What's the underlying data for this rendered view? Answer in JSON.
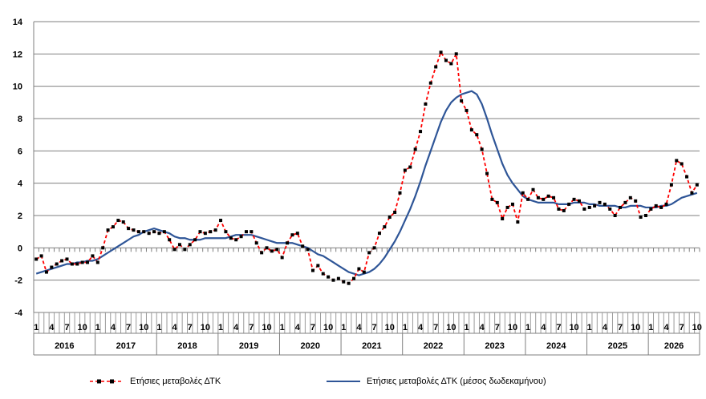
{
  "chart_data": {
    "type": "line",
    "ylim": [
      -4,
      14
    ],
    "yticks": [
      -4,
      -2,
      0,
      2,
      4,
      6,
      8,
      10,
      12,
      14
    ],
    "month_labels": [
      "1",
      "4",
      "7",
      "10"
    ],
    "years": [
      "2016",
      "2017",
      "2018",
      "2019",
      "2020",
      "2021",
      "2022",
      "2023",
      "2024",
      "2025",
      "2026"
    ],
    "grid": true,
    "legend_position": "bottom",
    "series": [
      {
        "name": "Ετήσιες μεταβολές ΔΤΚ",
        "color": "#ff0000",
        "style": "dashed-with-markers",
        "values": [
          -0.7,
          -0.5,
          -1.5,
          -1.2,
          -1.0,
          -0.8,
          -0.7,
          -1.0,
          -1.0,
          -0.9,
          -0.9,
          -0.5,
          -0.9,
          0.0,
          1.1,
          1.3,
          1.7,
          1.6,
          1.2,
          1.1,
          1.0,
          1.0,
          0.9,
          1.0,
          0.9,
          1.0,
          0.5,
          -0.1,
          0.2,
          -0.1,
          0.2,
          0.5,
          1.0,
          0.9,
          1.0,
          1.1,
          1.7,
          1.0,
          0.6,
          0.5,
          0.7,
          1.0,
          1.0,
          0.3,
          -0.3,
          0.0,
          -0.2,
          -0.1,
          -0.6,
          0.3,
          0.8,
          0.9,
          0.1,
          -0.1,
          -1.4,
          -1.1,
          -1.6,
          -1.8,
          -2.0,
          -1.9,
          -2.1,
          -2.2,
          -1.9,
          -1.3,
          -1.5,
          -0.3,
          0.0,
          0.9,
          1.3,
          1.9,
          2.2,
          3.4,
          4.8,
          5.0,
          6.1,
          7.2,
          8.9,
          10.2,
          11.2,
          12.1,
          11.6,
          11.4,
          12.0,
          9.1,
          8.5,
          7.3,
          7.0,
          6.1,
          4.6,
          3.0,
          2.8,
          1.8,
          2.5,
          2.7,
          1.6,
          3.4,
          3.0,
          3.6,
          3.1,
          3.0,
          3.2,
          3.1,
          2.4,
          2.3,
          2.7,
          3.0,
          2.9,
          2.4,
          2.5,
          2.6,
          2.8,
          2.7,
          2.4,
          2.0,
          2.5,
          2.8,
          3.1,
          2.9,
          1.9,
          2.0,
          2.4,
          2.6,
          2.5,
          2.7,
          3.9,
          5.4,
          5.2,
          4.4,
          3.4,
          3.9
        ]
      },
      {
        "name": "Ετήσιες μεταβολές ΔΤΚ (μέσος δωδεκαμήνου)",
        "color": "#2e5597",
        "style": "solid",
        "values": [
          -1.6,
          -1.5,
          -1.4,
          -1.3,
          -1.2,
          -1.1,
          -1.0,
          -1.0,
          -0.9,
          -0.9,
          -0.8,
          -0.8,
          -0.7,
          -0.5,
          -0.3,
          -0.1,
          0.1,
          0.3,
          0.5,
          0.7,
          0.8,
          1.0,
          1.1,
          1.2,
          1.1,
          1.0,
          0.9,
          0.7,
          0.6,
          0.6,
          0.5,
          0.5,
          0.5,
          0.6,
          0.6,
          0.6,
          0.6,
          0.6,
          0.7,
          0.8,
          0.8,
          0.8,
          0.8,
          0.7,
          0.6,
          0.5,
          0.4,
          0.3,
          0.3,
          0.3,
          0.3,
          0.2,
          0.1,
          0.0,
          -0.2,
          -0.4,
          -0.5,
          -0.7,
          -0.9,
          -1.1,
          -1.3,
          -1.5,
          -1.6,
          -1.7,
          -1.6,
          -1.5,
          -1.3,
          -1.0,
          -0.6,
          -0.1,
          0.4,
          1.0,
          1.7,
          2.4,
          3.2,
          4.1,
          5.1,
          6.0,
          6.9,
          7.8,
          8.5,
          9.0,
          9.3,
          9.5,
          9.6,
          9.7,
          9.5,
          8.9,
          8.0,
          7.0,
          6.1,
          5.2,
          4.5,
          4.0,
          3.6,
          3.2,
          3.0,
          2.9,
          2.8,
          2.8,
          2.8,
          2.8,
          2.7,
          2.7,
          2.7,
          2.8,
          2.8,
          2.8,
          2.7,
          2.7,
          2.6,
          2.6,
          2.6,
          2.6,
          2.5,
          2.5,
          2.6,
          2.6,
          2.6,
          2.5,
          2.5,
          2.5,
          2.6,
          2.6,
          2.7,
          2.9,
          3.1,
          3.2,
          3.3,
          3.4
        ]
      }
    ]
  }
}
